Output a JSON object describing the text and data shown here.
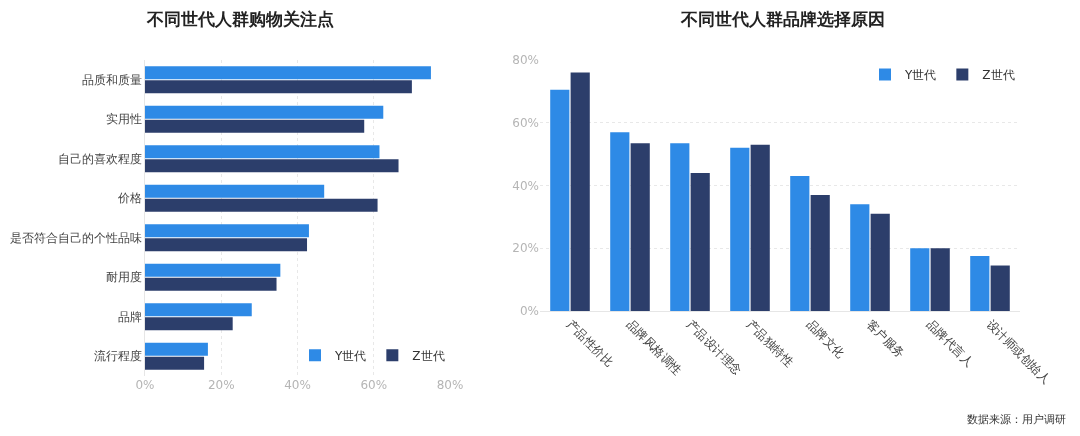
{
  "chart_data": [
    {
      "type": "bar",
      "title": "不同世代人群购物关注点",
      "orientation": "horizontal",
      "categories": [
        "品质和质量",
        "实用性",
        "自己的喜欢程度",
        "价格",
        "是否符合自己的个性品味",
        "耐用度",
        "品牌",
        "流行程度"
      ],
      "series": [
        {
          "name": "Y世代",
          "color": "#2e8ae6",
          "values": [
            75,
            62.5,
            61.5,
            47,
            43,
            35.5,
            28,
            16.5
          ]
        },
        {
          "name": "Z世代",
          "color": "#2c3e6b",
          "values": [
            70,
            57.5,
            66.5,
            61,
            42.5,
            34.5,
            23,
            15.5
          ]
        }
      ],
      "xlim": [
        0,
        80
      ],
      "xticks": [
        {
          "value": 0,
          "label": "0%"
        },
        {
          "value": 20,
          "label": "20%"
        },
        {
          "value": 40,
          "label": "40%"
        },
        {
          "value": 60,
          "label": "60%"
        },
        {
          "value": 80,
          "label": "80%"
        }
      ],
      "grid": "x",
      "legend": "bottom right"
    },
    {
      "type": "bar",
      "title": "不同世代人群品牌选择原因",
      "categories": [
        "产品性价比",
        "品牌风格调性",
        "产品设计理念",
        "产品独特性",
        "品牌文化",
        "客户服务",
        "品牌代言人",
        "设计师或创始人"
      ],
      "series": [
        {
          "name": "Y世代",
          "color": "#2e8ae6",
          "values": [
            70.5,
            57,
            53.5,
            52,
            43,
            34,
            20,
            17.5
          ]
        },
        {
          "name": "Z世代",
          "color": "#2c3e6b",
          "values": [
            76,
            53.5,
            44,
            53,
            37,
            31,
            20,
            14.5
          ]
        }
      ],
      "ylim": [
        0,
        80
      ],
      "yticks": [
        {
          "value": 0,
          "label": "0%"
        },
        {
          "value": 20,
          "label": "20%"
        },
        {
          "value": 40,
          "label": "40%"
        },
        {
          "value": 60,
          "label": "60%"
        },
        {
          "value": 80,
          "label": "80%"
        }
      ],
      "grid": "y",
      "legend": "top right",
      "annotations": [
        "数据来源：用户调研"
      ]
    }
  ]
}
